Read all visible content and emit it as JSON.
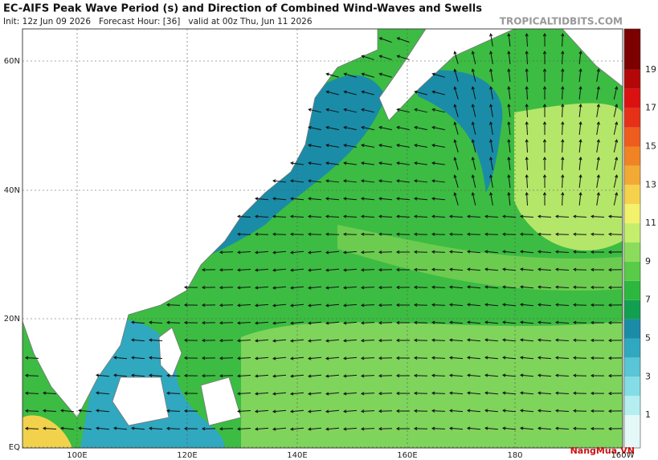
{
  "header": {
    "title": "EC-AIFS Peak Wave Period (s) and Direction of Combined Wind-Waves and Swells",
    "subtitle": "Init: 12z Jun 09 2026   Forecast Hour: [36]   valid at 00z Thu, Jun 11 2026",
    "source": "TROPICALTIDBITS.COM"
  },
  "map": {
    "lat_labels": [
      "60N",
      "40N",
      "20N",
      "EQ"
    ],
    "lon_labels": [
      "100E",
      "120E",
      "140E",
      "160E",
      "180",
      "160W"
    ]
  },
  "colorbar": {
    "labels": [
      "1",
      "3",
      "5",
      "7",
      "9",
      "11",
      "13",
      "15",
      "17",
      "19"
    ],
    "colors": [
      "#e4f8f8",
      "#b4eef0",
      "#84dde6",
      "#58c6d6",
      "#30a8c0",
      "#1a8ca8",
      "#12a050",
      "#2cb83e",
      "#58cc48",
      "#8cdc5c",
      "#c4ee6c",
      "#f2f26c",
      "#f6d24c",
      "#f2aa34",
      "#f08424",
      "#ee5c1e",
      "#e63018",
      "#dc1010",
      "#b40808",
      "#7c0000"
    ]
  },
  "watermark": "NangMua.VN"
}
